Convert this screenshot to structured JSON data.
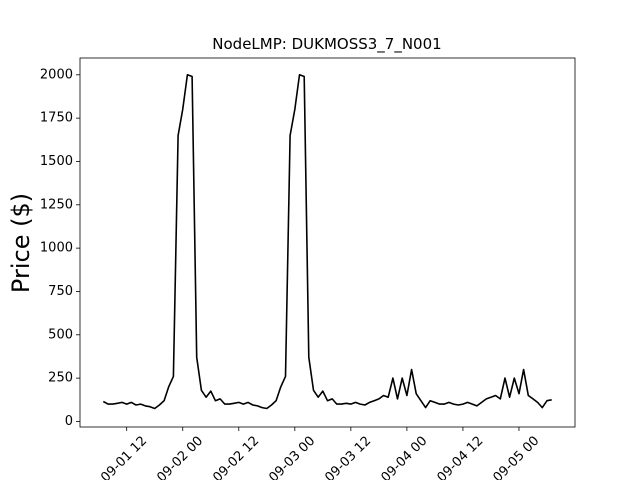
{
  "chart_data": {
    "type": "line",
    "title": "NodeLMP: DUKMOSS3_7_N001",
    "ylabel": "Price ($)",
    "color": "#000000",
    "x": [
      "09-01 07",
      "09-01 08",
      "09-01 09",
      "09-01 10",
      "09-01 11",
      "09-01 12",
      "09-01 13",
      "09-01 14",
      "09-01 15",
      "09-01 16",
      "09-01 17",
      "09-01 18",
      "09-01 19",
      "09-01 20",
      "09-01 21",
      "09-01 22",
      "09-01 23",
      "09-02 00",
      "09-02 01",
      "09-02 02",
      "09-02 03",
      "09-02 04",
      "09-02 05",
      "09-02 06",
      "09-02 07",
      "09-02 08",
      "09-02 09",
      "09-02 10",
      "09-02 11",
      "09-02 12",
      "09-02 13",
      "09-02 14",
      "09-02 15",
      "09-02 16",
      "09-02 17",
      "09-02 18",
      "09-02 19",
      "09-02 20",
      "09-02 21",
      "09-02 22",
      "09-02 23",
      "09-03 00",
      "09-03 01",
      "09-03 02",
      "09-03 03",
      "09-03 04",
      "09-03 05",
      "09-03 06",
      "09-03 07",
      "09-03 08",
      "09-03 09",
      "09-03 10",
      "09-03 11",
      "09-03 12",
      "09-03 13",
      "09-03 14",
      "09-03 15",
      "09-03 16",
      "09-03 17",
      "09-03 18",
      "09-03 19",
      "09-03 20",
      "09-03 21",
      "09-03 22",
      "09-03 23",
      "09-04 00",
      "09-04 01",
      "09-04 02",
      "09-04 03",
      "09-04 04",
      "09-04 05",
      "09-04 06",
      "09-04 07",
      "09-04 08",
      "09-04 09",
      "09-04 10",
      "09-04 11",
      "09-04 12",
      "09-04 13",
      "09-04 14",
      "09-04 15",
      "09-04 16",
      "09-04 17",
      "09-04 18",
      "09-04 19",
      "09-04 20",
      "09-04 21",
      "09-04 22",
      "09-04 23",
      "09-05 00",
      "09-05 01",
      "09-05 02",
      "09-05 03",
      "09-05 04",
      "09-05 05",
      "09-05 06",
      "09-05 07"
    ],
    "values": [
      115,
      100,
      100,
      105,
      110,
      100,
      110,
      95,
      100,
      90,
      85,
      75,
      95,
      120,
      200,
      260,
      1650,
      1800,
      2000,
      1990,
      370,
      180,
      140,
      175,
      120,
      130,
      100,
      100,
      105,
      110,
      100,
      110,
      95,
      90,
      80,
      75,
      95,
      120,
      200,
      260,
      1650,
      1800,
      2000,
      1990,
      370,
      180,
      140,
      175,
      120,
      130,
      100,
      100,
      105,
      100,
      110,
      100,
      95,
      110,
      120,
      130,
      150,
      140,
      250,
      130,
      250,
      150,
      300,
      160,
      120,
      80,
      120,
      110,
      100,
      100,
      110,
      100,
      95,
      100,
      110,
      100,
      90,
      110,
      130,
      140,
      150,
      130,
      250,
      140,
      250,
      160,
      300,
      150,
      130,
      110,
      80,
      120,
      125
    ],
    "xlim": [
      "09-01 02",
      "09-05 12"
    ],
    "xticks": [
      "09-01 12",
      "09-02 00",
      "09-02 12",
      "09-03 00",
      "09-03 12",
      "09-04 00",
      "09-04 12",
      "09-05 00"
    ],
    "ylim": [
      -32,
      2097
    ],
    "yticks": [
      0,
      250,
      500,
      750,
      1000,
      1250,
      1500,
      1750,
      2000
    ]
  }
}
